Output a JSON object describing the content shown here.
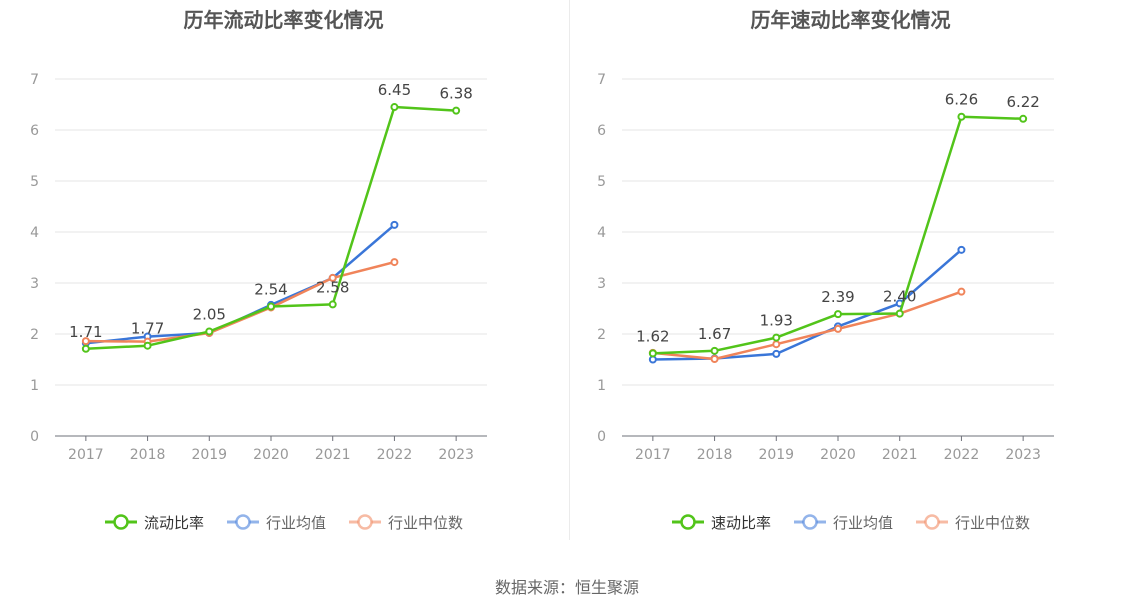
{
  "source": "数据来源：恒生聚源",
  "chart_data": [
    {
      "type": "line",
      "title": "历年流动比率变化情况",
      "categories": [
        "2017",
        "2018",
        "2019",
        "2020",
        "2021",
        "2022",
        "2023"
      ],
      "yticks": [
        "0",
        "1",
        "2",
        "3",
        "4",
        "5",
        "6",
        "7"
      ],
      "ylim": [
        0,
        7
      ],
      "grid": true,
      "legend": "bottom",
      "series": [
        {
          "name": "流动比率",
          "color": "#52c41a",
          "values": [
            1.71,
            1.77,
            2.05,
            2.54,
            2.58,
            6.45,
            6.38
          ],
          "labels": [
            "1.71",
            "1.77",
            "2.05",
            "2.54",
            "2.58",
            "6.45",
            "6.38"
          ]
        },
        {
          "name": "行业均值",
          "color": "#3a76d8",
          "values": [
            1.82,
            1.95,
            2.02,
            2.57,
            3.1,
            4.14,
            null
          ]
        },
        {
          "name": "行业中位数",
          "color": "#f0845a",
          "values": [
            1.86,
            1.85,
            2.02,
            2.52,
            3.1,
            3.41,
            null
          ]
        }
      ]
    },
    {
      "type": "line",
      "title": "历年速动比率变化情况",
      "categories": [
        "2017",
        "2018",
        "2019",
        "2020",
        "2021",
        "2022",
        "2023"
      ],
      "yticks": [
        "0",
        "1",
        "2",
        "3",
        "4",
        "5",
        "6",
        "7"
      ],
      "ylim": [
        0,
        7
      ],
      "grid": true,
      "legend": "bottom",
      "series": [
        {
          "name": "速动比率",
          "color": "#52c41a",
          "values": [
            1.62,
            1.67,
            1.93,
            2.39,
            2.4,
            6.26,
            6.22
          ],
          "labels": [
            "1.62",
            "1.67",
            "1.93",
            "2.39",
            "2.40",
            "6.26",
            "6.22"
          ]
        },
        {
          "name": "行业均值",
          "color": "#3a76d8",
          "values": [
            1.5,
            1.52,
            1.61,
            2.15,
            2.6,
            3.65,
            null
          ]
        },
        {
          "name": "行业中位数",
          "color": "#f0845a",
          "values": [
            1.63,
            1.51,
            1.8,
            2.1,
            2.4,
            2.83,
            null
          ]
        }
      ]
    }
  ]
}
